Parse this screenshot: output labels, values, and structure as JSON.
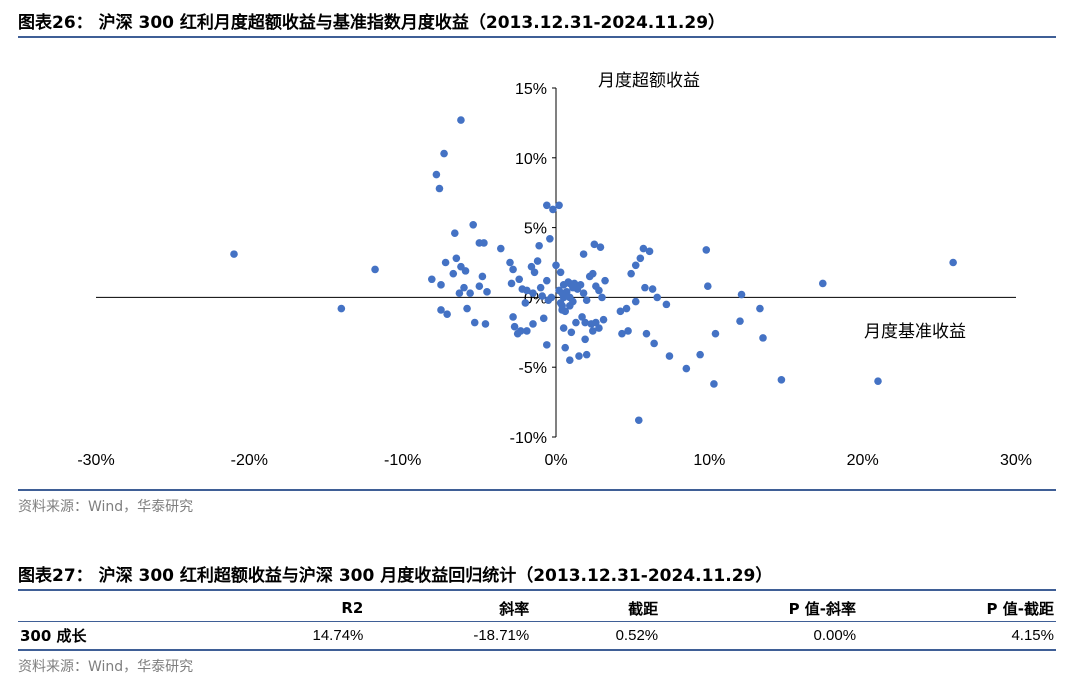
{
  "figure26": {
    "title": "图表26： 沪深 300 红利月度超额收益与基准指数月度收益（2013.12.31-2024.11.29）",
    "source": "资料来源：Wind，华泰研究"
  },
  "chart_data": {
    "type": "scatter",
    "title": "",
    "xlabel": "月度基准收益",
    "ylabel": "月度超额收益",
    "xlim": [
      -30,
      30
    ],
    "ylim": [
      -10,
      15
    ],
    "x_ticks": [
      "-30%",
      "-20%",
      "-10%",
      "0%",
      "10%",
      "20%",
      "30%"
    ],
    "y_ticks": [
      "-10%",
      "-5%",
      "0%",
      "5%",
      "10%",
      "15%"
    ],
    "grid": false,
    "legend": "none",
    "color": "#4472c4",
    "points": [
      [
        -21.0,
        3.1
      ],
      [
        -14.0,
        -0.8
      ],
      [
        -11.8,
        2.0
      ],
      [
        -6.2,
        12.7
      ],
      [
        -7.3,
        10.3
      ],
      [
        -7.8,
        8.8
      ],
      [
        -7.6,
        7.8
      ],
      [
        -5.4,
        5.2
      ],
      [
        -6.6,
        4.6
      ],
      [
        -5.0,
        3.9
      ],
      [
        -4.7,
        3.9
      ],
      [
        -3.6,
        3.5
      ],
      [
        -4.8,
        1.5
      ],
      [
        -6.5,
        2.8
      ],
      [
        -6.2,
        2.2
      ],
      [
        -5.9,
        1.9
      ],
      [
        -6.7,
        1.7
      ],
      [
        -7.2,
        2.5
      ],
      [
        -8.1,
        1.3
      ],
      [
        -7.5,
        0.9
      ],
      [
        -6.0,
        0.7
      ],
      [
        -5.0,
        0.8
      ],
      [
        -5.6,
        0.3
      ],
      [
        -6.3,
        0.3
      ],
      [
        -4.5,
        0.4
      ],
      [
        -7.5,
        -0.9
      ],
      [
        -7.1,
        -1.2
      ],
      [
        -5.8,
        -0.8
      ],
      [
        -5.3,
        -1.8
      ],
      [
        -4.6,
        -1.9
      ],
      [
        -3.0,
        2.5
      ],
      [
        -2.8,
        2.0
      ],
      [
        -2.4,
        1.3
      ],
      [
        -1.6,
        2.2
      ],
      [
        -1.4,
        1.8
      ],
      [
        -2.9,
        1.0
      ],
      [
        -1.9,
        0.5
      ],
      [
        -1.5,
        0.3
      ],
      [
        -1.0,
        0.7
      ],
      [
        -0.9,
        0.1
      ],
      [
        -0.5,
        -0.2
      ],
      [
        -0.3,
        0.0
      ],
      [
        -2.2,
        0.6
      ],
      [
        -2.0,
        -0.4
      ],
      [
        -2.8,
        -1.4
      ],
      [
        -2.7,
        -2.1
      ],
      [
        -2.3,
        -2.4
      ],
      [
        -2.5,
        -2.6
      ],
      [
        -1.9,
        -2.4
      ],
      [
        -1.5,
        -1.9
      ],
      [
        -0.8,
        -1.5
      ],
      [
        -0.6,
        -3.4
      ],
      [
        -1.1,
        3.7
      ],
      [
        -1.2,
        2.6
      ],
      [
        -0.6,
        6.6
      ],
      [
        -0.2,
        6.3
      ],
      [
        0.2,
        6.6
      ],
      [
        -0.4,
        4.2
      ],
      [
        -0.6,
        1.2
      ],
      [
        0.0,
        2.3
      ],
      [
        0.3,
        1.8
      ],
      [
        0.5,
        0.9
      ],
      [
        0.7,
        0.4
      ],
      [
        0.9,
        0.0
      ],
      [
        1.1,
        -0.3
      ],
      [
        0.4,
        -0.6
      ],
      [
        0.6,
        -1.0
      ],
      [
        0.9,
        -0.6
      ],
      [
        0.4,
        -0.9
      ],
      [
        0.2,
        0.5
      ],
      [
        0.4,
        0.3
      ],
      [
        0.8,
        1.1
      ],
      [
        1.2,
        1.0
      ],
      [
        1.4,
        0.6
      ],
      [
        1.6,
        0.9
      ],
      [
        1.8,
        0.3
      ],
      [
        2.0,
        -0.2
      ],
      [
        2.2,
        1.5
      ],
      [
        2.4,
        1.7
      ],
      [
        2.6,
        0.8
      ],
      [
        2.8,
        0.5
      ],
      [
        3.0,
        0.0
      ],
      [
        3.2,
        1.2
      ],
      [
        1.7,
        -1.4
      ],
      [
        1.9,
        -1.8
      ],
      [
        2.3,
        -1.9
      ],
      [
        2.6,
        -1.8
      ],
      [
        2.8,
        -2.2
      ],
      [
        2.4,
        -2.4
      ],
      [
        3.1,
        -1.6
      ],
      [
        1.0,
        -2.5
      ],
      [
        1.3,
        -1.8
      ],
      [
        0.5,
        -2.2
      ],
      [
        0.6,
        -3.6
      ],
      [
        0.9,
        -4.5
      ],
      [
        1.5,
        -4.2
      ],
      [
        2.0,
        -4.1
      ],
      [
        1.9,
        -3.0
      ],
      [
        2.5,
        3.8
      ],
      [
        2.9,
        3.6
      ],
      [
        1.8,
        3.1
      ],
      [
        0.9,
        1.0
      ],
      [
        1.1,
        0.7
      ],
      [
        0.5,
        0.0
      ],
      [
        0.3,
        -0.4
      ],
      [
        4.2,
        -1.0
      ],
      [
        4.6,
        -0.8
      ],
      [
        4.3,
        -2.6
      ],
      [
        4.7,
        -2.4
      ],
      [
        4.9,
        1.7
      ],
      [
        5.2,
        2.3
      ],
      [
        5.5,
        2.8
      ],
      [
        5.7,
        3.5
      ],
      [
        6.1,
        3.3
      ],
      [
        5.8,
        0.7
      ],
      [
        6.3,
        0.6
      ],
      [
        6.6,
        0.0
      ],
      [
        7.2,
        -0.5
      ],
      [
        5.9,
        -2.6
      ],
      [
        6.4,
        -3.3
      ],
      [
        5.2,
        -0.3
      ],
      [
        5.4,
        -8.8
      ],
      [
        7.4,
        -4.2
      ],
      [
        8.5,
        -5.1
      ],
      [
        9.4,
        -4.1
      ],
      [
        9.8,
        3.4
      ],
      [
        9.9,
        0.8
      ],
      [
        10.4,
        -2.6
      ],
      [
        10.3,
        -6.2
      ],
      [
        12.0,
        -1.7
      ],
      [
        12.1,
        0.2
      ],
      [
        13.3,
        -0.8
      ],
      [
        13.5,
        -2.9
      ],
      [
        14.7,
        -5.9
      ],
      [
        17.4,
        1.0
      ],
      [
        21.0,
        -6.0
      ],
      [
        25.9,
        2.5
      ]
    ]
  },
  "figure27": {
    "title": "图表27： 沪深 300 红利超额收益与沪深 300 月度收益回归统计（2013.12.31-2024.11.29）",
    "columns": [
      "",
      "R2",
      "斜率",
      "截距",
      "P 值-斜率",
      "P 值-截距"
    ],
    "rows": [
      [
        "300 成长",
        "14.74%",
        "-18.71%",
        "0.52%",
        "0.00%",
        "4.15%"
      ]
    ],
    "source": "资料来源：Wind，华泰研究"
  }
}
